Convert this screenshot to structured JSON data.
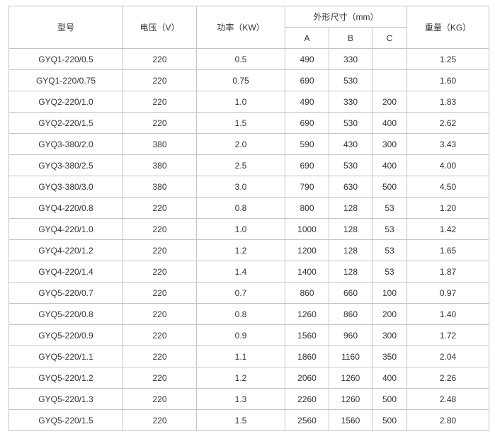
{
  "headers": {
    "model": "型号",
    "voltage": "电压（V）",
    "power": "功率（KW）",
    "dimensions": "外形尺寸（mm）",
    "a": "A",
    "b": "B",
    "c": "C",
    "weight": "重量（KG）"
  },
  "rows": [
    [
      "GYQ1-220/0.5",
      "220",
      "0.5",
      "490",
      "330",
      "",
      "1.25"
    ],
    [
      "GYQ1-220/0.75",
      "220",
      "0.75",
      "690",
      "530",
      "",
      "1.60"
    ],
    [
      "GYQ2-220/1.0",
      "220",
      "1.0",
      "490",
      "330",
      "200",
      "1.83"
    ],
    [
      "GYQ2-220/1.5",
      "220",
      "1.5",
      "690",
      "530",
      "400",
      "2.62"
    ],
    [
      "GYQ3-380/2.0",
      "380",
      "2.0",
      "590",
      "430",
      "300",
      "3.43"
    ],
    [
      "GYQ3-380/2.5",
      "380",
      "2.5",
      "690",
      "530",
      "400",
      "4.00"
    ],
    [
      "GYQ3-380/3.0",
      "380",
      "3.0",
      "790",
      "630",
      "500",
      "4.50"
    ],
    [
      "GYQ4-220/0.8",
      "220",
      "0.8",
      "800",
      "128",
      "53",
      "1.20"
    ],
    [
      "GYQ4-220/1.0",
      "220",
      "1.0",
      "1000",
      "128",
      "53",
      "1.42"
    ],
    [
      "GYQ4-220/1.2",
      "220",
      "1.2",
      "1200",
      "128",
      "53",
      "1.65"
    ],
    [
      "GYQ4-220/1.4",
      "220",
      "1.4",
      "1400",
      "128",
      "53",
      "1.87"
    ],
    [
      "GYQ5-220/0.7",
      "220",
      "0.7",
      "860",
      "660",
      "100",
      "0.97"
    ],
    [
      "GYQ5-220/0.8",
      "220",
      "0.8",
      "1260",
      "860",
      "200",
      "1.40"
    ],
    [
      "GYQ5-220/0.9",
      "220",
      "0.9",
      "1560",
      "960",
      "300",
      "1.72"
    ],
    [
      "GYQ5-220/1.1",
      "220",
      "1.1",
      "1860",
      "1160",
      "350",
      "2.04"
    ],
    [
      "GYQ5-220/1.2",
      "220",
      "1.2",
      "2060",
      "1260",
      "400",
      "2.26"
    ],
    [
      "GYQ5-220/1.3",
      "220",
      "1.3",
      "2260",
      "1260",
      "500",
      "2.48"
    ],
    [
      "GYQ5-220/1.5",
      "220",
      "1.5",
      "2560",
      "1560",
      "500",
      "2.80"
    ]
  ]
}
